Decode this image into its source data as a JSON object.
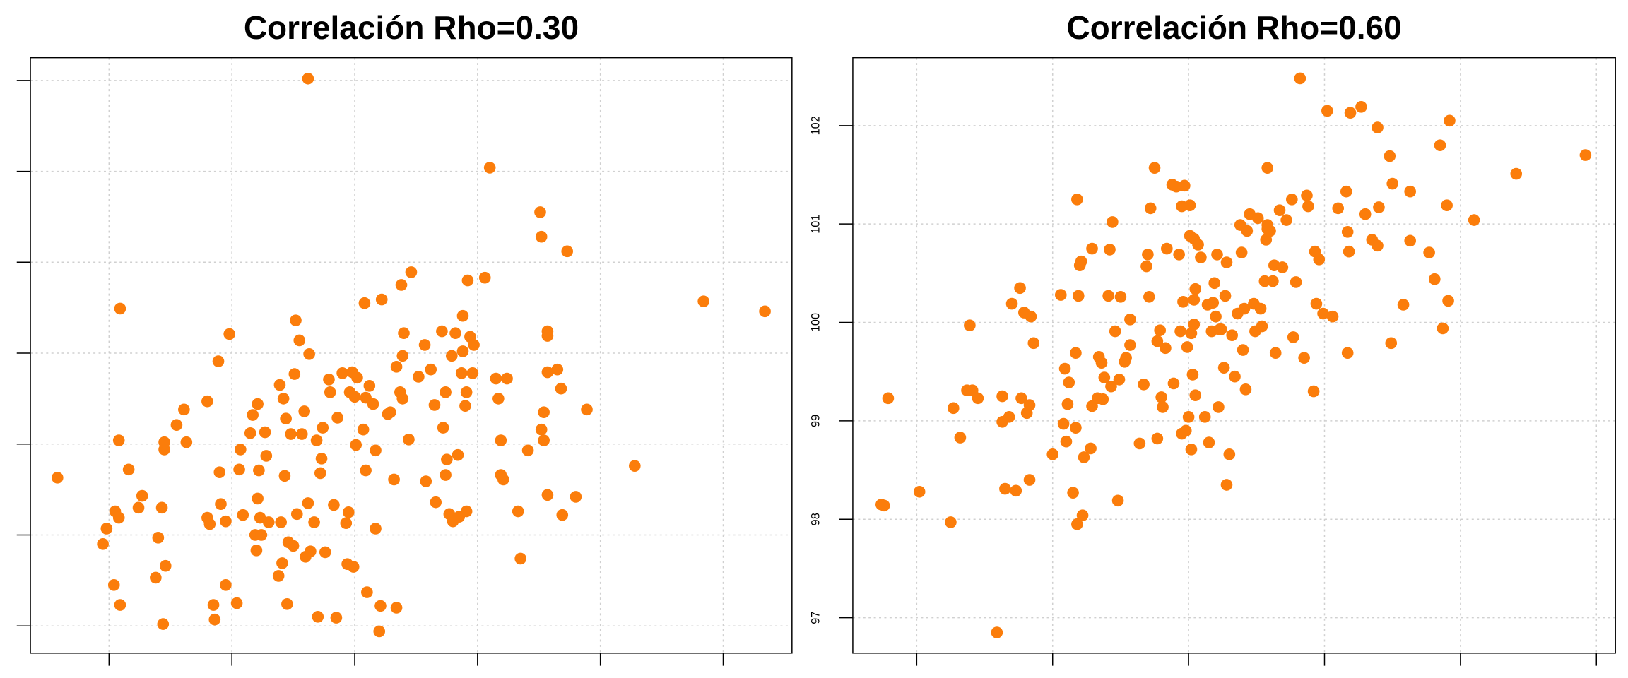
{
  "chart_data": [
    {
      "type": "scatter",
      "title": "Correlación Rho=0.30",
      "color": "#fb7d0b",
      "grid": true,
      "xtick_labels": false,
      "ytick_labels": false,
      "xlim": [
        97.36,
        103.56
      ],
      "ylim": [
        96.7,
        103.25
      ],
      "xticks": [
        98,
        99,
        100,
        101,
        102,
        103
      ],
      "yticks": [
        97,
        98,
        99,
        100,
        101,
        102,
        103
      ],
      "x": [
        97.58,
        97.95,
        97.98,
        98.05,
        98.08,
        98.09,
        98.04,
        98.09,
        98.16,
        98.24,
        98.27,
        98.38,
        98.4,
        98.43,
        98.44,
        98.45,
        98.46,
        98.45,
        98.55,
        98.61,
        98.63,
        98.8,
        98.8,
        98.82,
        98.85,
        98.86,
        98.89,
        98.9,
        98.91,
        98.95,
        98.95,
        98.98,
        99.04,
        99.06,
        99.07,
        99.09,
        99.15,
        99.17,
        99.19,
        99.2,
        99.21,
        99.21,
        99.22,
        99.23,
        99.24,
        99.27,
        99.28,
        99.3,
        99.38,
        99.39,
        99.4,
        99.41,
        99.42,
        99.43,
        99.44,
        99.45,
        99.46,
        99.48,
        99.5,
        99.51,
        99.52,
        99.53,
        99.55,
        99.57,
        99.59,
        99.6,
        99.62,
        99.62,
        99.63,
        99.64,
        99.67,
        99.69,
        99.7,
        99.72,
        99.73,
        99.74,
        99.76,
        99.79,
        99.8,
        99.83,
        99.85,
        99.86,
        99.9,
        99.93,
        99.95,
        99.94,
        99.96,
        99.98,
        99.99,
        100.0,
        100.01,
        100.02,
        100.07,
        100.08,
        100.09,
        100.09,
        100.1,
        100.12,
        100.15,
        100.17,
        100.17,
        100.2,
        100.21,
        100.22,
        100.27,
        100.29,
        100.32,
        100.34,
        100.34,
        100.37,
        100.38,
        100.39,
        100.39,
        100.4,
        100.44,
        100.46,
        100.52,
        100.57,
        100.58,
        100.62,
        100.65,
        100.66,
        100.71,
        100.72,
        100.74,
        100.74,
        100.75,
        100.77,
        100.79,
        100.8,
        100.82,
        100.84,
        100.85,
        100.87,
        100.88,
        100.88,
        100.9,
        100.91,
        100.91,
        100.92,
        100.94,
        100.97,
        100.96,
        101.06,
        101.1,
        101.15,
        101.17,
        101.19,
        101.19,
        101.21,
        101.24,
        101.33,
        101.35,
        101.41,
        101.51,
        101.52,
        101.54,
        101.54,
        101.52,
        101.57,
        101.57,
        101.57,
        101.57,
        101.65,
        101.69,
        101.68,
        101.73,
        101.8,
        101.89,
        102.28,
        102.84,
        103.34,
        98.08
      ],
      "y": [
        98.63,
        97.9,
        98.07,
        98.26,
        99.04,
        100.49,
        97.45,
        97.23,
        98.72,
        98.3,
        98.43,
        97.53,
        97.97,
        98.3,
        97.02,
        98.94,
        97.66,
        99.02,
        99.21,
        99.38,
        99.02,
        99.47,
        98.19,
        98.12,
        97.23,
        97.07,
        99.91,
        98.69,
        98.34,
        98.15,
        97.45,
        100.21,
        97.25,
        98.72,
        98.94,
        98.22,
        99.12,
        99.32,
        98.0,
        97.83,
        98.4,
        99.44,
        98.71,
        98.19,
        98.0,
        99.13,
        98.87,
        98.14,
        97.55,
        99.65,
        98.14,
        97.69,
        99.5,
        98.65,
        99.28,
        97.24,
        97.92,
        99.11,
        97.88,
        99.77,
        100.36,
        98.23,
        100.14,
        99.11,
        99.36,
        97.76,
        98.35,
        103.02,
        99.99,
        97.82,
        98.14,
        99.04,
        97.1,
        98.68,
        98.84,
        99.18,
        97.81,
        99.71,
        99.57,
        98.33,
        97.09,
        99.29,
        99.78,
        98.13,
        98.25,
        97.68,
        99.57,
        99.79,
        97.65,
        99.52,
        98.99,
        99.73,
        99.16,
        100.55,
        99.51,
        98.71,
        97.37,
        99.64,
        99.44,
        98.93,
        98.07,
        96.94,
        97.22,
        100.59,
        99.33,
        99.35,
        98.61,
        99.85,
        97.2,
        99.57,
        100.75,
        99.97,
        99.5,
        100.22,
        99.05,
        100.89,
        99.74,
        100.09,
        98.59,
        99.82,
        99.43,
        98.36,
        100.24,
        99.18,
        99.57,
        98.66,
        98.83,
        98.23,
        99.97,
        98.15,
        100.22,
        98.88,
        98.2,
        99.78,
        100.41,
        100.02,
        99.42,
        99.57,
        98.26,
        100.8,
        100.18,
        100.09,
        99.78,
        100.83,
        102.04,
        99.72,
        99.5,
        99.04,
        98.66,
        98.61,
        99.72,
        98.26,
        97.74,
        98.93,
        101.55,
        99.16,
        99.35,
        99.04,
        101.28,
        100.24,
        100.19,
        99.79,
        98.44,
        99.82,
        98.22,
        99.61,
        101.12,
        98.42,
        99.38,
        98.76,
        100.57,
        100.46,
        98.19
      ]
    },
    {
      "type": "scatter",
      "title": "Correlación Rho=0.60",
      "color": "#fb7d0b",
      "grid": true,
      "xtick_labels": false,
      "ytick_labels": true,
      "xlim": [
        97.53,
        103.14
      ],
      "ylim": [
        96.64,
        102.69
      ],
      "xticks": [
        98,
        99,
        100,
        101,
        102,
        103
      ],
      "yticks": [
        97,
        98,
        99,
        100,
        101,
        102
      ],
      "x": [
        97.74,
        97.76,
        97.79,
        98.02,
        98.25,
        98.27,
        98.32,
        98.37,
        98.39,
        98.41,
        98.45,
        98.59,
        98.63,
        98.63,
        98.65,
        98.68,
        98.7,
        98.73,
        98.76,
        98.77,
        98.79,
        98.81,
        98.83,
        98.83,
        98.84,
        98.86,
        99.0,
        99.06,
        99.08,
        99.09,
        99.1,
        99.11,
        99.12,
        99.15,
        99.17,
        99.17,
        99.18,
        99.19,
        99.2,
        99.21,
        99.18,
        99.22,
        99.23,
        99.28,
        99.29,
        99.29,
        99.33,
        99.34,
        99.36,
        99.37,
        99.38,
        99.41,
        99.42,
        99.43,
        99.44,
        99.46,
        99.48,
        99.49,
        99.5,
        99.53,
        99.54,
        99.57,
        99.57,
        99.64,
        99.67,
        99.69,
        99.7,
        99.71,
        99.72,
        99.75,
        99.77,
        99.77,
        99.79,
        99.8,
        99.81,
        99.83,
        99.84,
        99.88,
        99.89,
        99.91,
        99.93,
        99.94,
        99.95,
        99.95,
        99.96,
        99.97,
        99.98,
        99.99,
        100.0,
        100.01,
        100.01,
        100.02,
        100.02,
        100.03,
        100.04,
        100.04,
        100.04,
        100.05,
        100.05,
        100.07,
        100.09,
        100.12,
        100.14,
        100.15,
        100.17,
        100.18,
        100.19,
        100.2,
        100.21,
        100.22,
        100.23,
        100.24,
        100.26,
        100.27,
        100.28,
        100.28,
        100.3,
        100.32,
        100.34,
        100.36,
        100.38,
        100.39,
        100.4,
        100.41,
        100.42,
        100.43,
        100.45,
        100.48,
        100.49,
        100.51,
        100.53,
        100.54,
        100.56,
        100.57,
        100.58,
        100.58,
        100.58,
        100.6,
        100.62,
        100.63,
        100.64,
        100.67,
        100.69,
        100.72,
        100.76,
        100.77,
        100.79,
        100.82,
        100.85,
        100.87,
        100.88,
        100.92,
        100.93,
        100.94,
        100.96,
        100.99,
        101.02,
        101.06,
        101.1,
        101.16,
        101.17,
        101.17,
        101.18,
        101.19,
        101.27,
        101.3,
        101.35,
        101.39,
        101.39,
        101.4,
        101.48,
        101.49,
        101.5,
        101.58,
        101.63,
        101.63,
        101.77,
        101.81,
        101.85,
        101.87,
        101.9,
        101.91,
        101.92,
        102.41,
        102.92,
        102.1
      ],
      "y": [
        98.15,
        98.14,
        99.23,
        98.28,
        97.97,
        99.13,
        98.83,
        99.31,
        99.97,
        99.31,
        99.23,
        96.85,
        99.25,
        98.99,
        98.31,
        99.04,
        100.19,
        98.29,
        100.35,
        99.23,
        100.1,
        99.08,
        99.16,
        98.4,
        100.06,
        99.79,
        98.66,
        100.28,
        98.97,
        99.53,
        98.79,
        99.17,
        99.39,
        98.27,
        98.93,
        99.69,
        97.95,
        100.27,
        100.58,
        100.62,
        101.25,
        98.04,
        98.63,
        98.72,
        100.75,
        99.15,
        99.23,
        99.65,
        99.59,
        99.22,
        99.44,
        100.27,
        100.74,
        99.35,
        101.02,
        99.91,
        98.19,
        99.42,
        100.26,
        99.6,
        99.64,
        100.03,
        99.77,
        98.77,
        99.37,
        100.57,
        100.69,
        100.26,
        101.16,
        101.57,
        99.81,
        98.82,
        99.92,
        99.24,
        99.14,
        99.74,
        100.75,
        101.4,
        99.38,
        101.38,
        100.69,
        99.91,
        101.18,
        98.87,
        100.21,
        101.39,
        98.9,
        99.75,
        99.04,
        100.88,
        101.19,
        98.71,
        99.89,
        99.47,
        100.23,
        100.85,
        99.98,
        100.34,
        99.26,
        100.79,
        100.66,
        99.04,
        100.18,
        98.78,
        99.91,
        100.2,
        100.4,
        100.06,
        100.69,
        99.14,
        99.93,
        99.93,
        99.54,
        100.27,
        100.61,
        98.35,
        98.66,
        99.87,
        99.45,
        100.09,
        100.99,
        100.71,
        99.72,
        100.14,
        99.32,
        100.93,
        101.1,
        100.19,
        99.91,
        101.06,
        100.14,
        99.96,
        100.42,
        100.84,
        101.57,
        100.99,
        100.95,
        100.93,
        100.42,
        100.58,
        99.69,
        101.14,
        100.56,
        101.04,
        101.25,
        99.85,
        100.41,
        102.48,
        99.64,
        101.29,
        101.18,
        99.3,
        100.72,
        100.19,
        100.64,
        100.09,
        102.15,
        100.06,
        101.16,
        101.33,
        100.92,
        99.69,
        100.72,
        102.13,
        102.19,
        101.1,
        100.84,
        101.98,
        100.78,
        101.17,
        101.69,
        99.79,
        101.41,
        100.18,
        100.83,
        101.33,
        100.71,
        100.44,
        101.8,
        99.94,
        101.19,
        100.22,
        102.05,
        101.51,
        101.7,
        101.04
      ]
    }
  ]
}
